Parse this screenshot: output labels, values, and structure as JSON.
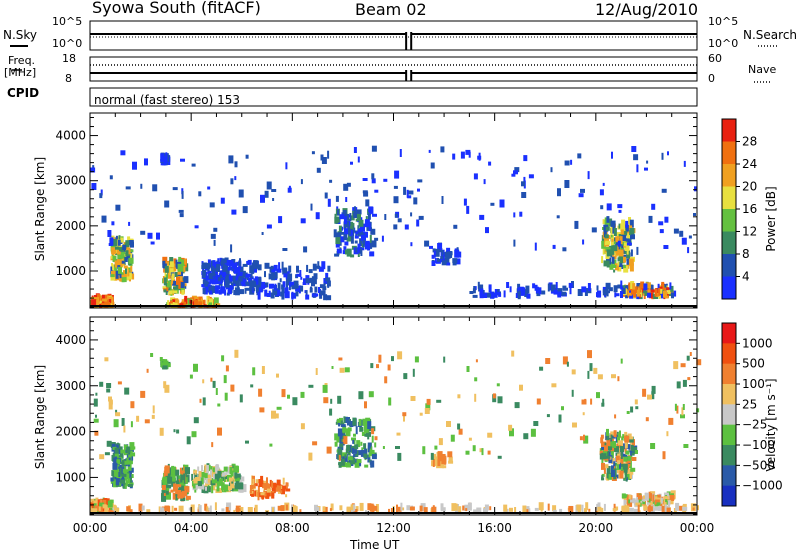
{
  "header": {
    "station": "Syowa South (fitACF)",
    "beam": "Beam 02",
    "date": "12/Aug/2010"
  },
  "panels": {
    "nsky_label": "N.Sky",
    "nsearch_label": "N.Search",
    "freq_label_line1": "Freq.",
    "freq_label_line2": "[MHz]",
    "nave_label": "Nave",
    "cpid_label": "CPID",
    "cpid_text": "normal (fast stereo) 153",
    "noise_left_ticks": [
      "10^5",
      "10^0"
    ],
    "noise_right_ticks": [
      "10^5",
      "10^0"
    ],
    "freq_left_ticks": [
      "18",
      "8"
    ],
    "freq_right_ticks": [
      "60",
      "0"
    ]
  },
  "chart_data": [
    {
      "type": "heatmap",
      "name": "power",
      "ylabel": "Slant Range [km]",
      "xlabel": "Time UT",
      "x_range_hours": [
        0,
        24
      ],
      "ylim": [
        180,
        4500
      ],
      "y_ticks": [
        1000,
        2000,
        3000,
        4000
      ],
      "colorbar_label": "Power [dB]",
      "colorbar_ticks": [
        "4",
        "8",
        "12",
        "16",
        "20",
        "24",
        "28"
      ],
      "colors": [
        "#1a30ff",
        "#2050b0",
        "#3a8a60",
        "#64c040",
        "#e8e040",
        "#f0a020",
        "#f07010",
        "#e82010"
      ],
      "blobs": [
        {
          "t": 0.4,
          "r": 250,
          "dt": 0.9,
          "dr": 160,
          "n": 120,
          "c": [
            4,
            5,
            6,
            7
          ]
        },
        {
          "t": 1.2,
          "r": 1200,
          "dt": 0.8,
          "dr": 900,
          "n": 140,
          "c": [
            1,
            2,
            3,
            4,
            5
          ]
        },
        {
          "t": 3.3,
          "r": 800,
          "dt": 0.9,
          "dr": 700,
          "n": 110,
          "c": [
            1,
            2,
            3,
            4,
            5,
            6
          ]
        },
        {
          "t": 4.0,
          "r": 230,
          "dt": 2.0,
          "dr": 100,
          "n": 90,
          "c": [
            3,
            4,
            5,
            6,
            7
          ]
        },
        {
          "t": 5.5,
          "r": 800,
          "dt": 2.2,
          "dr": 700,
          "n": 230,
          "c": [
            0,
            1
          ]
        },
        {
          "t": 8.0,
          "r": 700,
          "dt": 2.8,
          "dr": 700,
          "n": 110,
          "c": [
            0,
            1
          ]
        },
        {
          "t": 10.4,
          "r": 1800,
          "dt": 1.5,
          "dr": 1000,
          "n": 130,
          "c": [
            0,
            1,
            2
          ]
        },
        {
          "t": 2.9,
          "r": 3400,
          "dt": 0.25,
          "dr": 120,
          "n": 40,
          "c": [
            0,
            1
          ]
        },
        {
          "t": 14.0,
          "r": 1300,
          "dt": 1.0,
          "dr": 400,
          "n": 40,
          "c": [
            0,
            1
          ]
        },
        {
          "t": 20.8,
          "r": 1500,
          "dt": 1.2,
          "dr": 1100,
          "n": 170,
          "c": [
            1,
            2,
            3,
            4,
            5
          ]
        },
        {
          "t": 22.0,
          "r": 500,
          "dt": 2.0,
          "dr": 250,
          "n": 130,
          "c": [
            0,
            1,
            2,
            4,
            5,
            6,
            7
          ]
        },
        {
          "t": 18.0,
          "r": 500,
          "dt": 6.0,
          "dr": 250,
          "n": 90,
          "c": [
            0,
            1
          ]
        },
        {
          "t": 12.0,
          "r": 2500,
          "dt": 24.0,
          "dr": 2300,
          "n": 200,
          "c": [
            0,
            1
          ]
        }
      ]
    },
    {
      "type": "heatmap",
      "name": "velocity",
      "ylabel": "Slant Range [km]",
      "xlabel": "Time UT",
      "x_range_hours": [
        0,
        24
      ],
      "ylim": [
        180,
        4500
      ],
      "y_ticks": [
        1000,
        2000,
        3000,
        4000
      ],
      "x_ticks": [
        "00:00",
        "04:00",
        "08:00",
        "12:00",
        "16:00",
        "20:00",
        "00:00"
      ],
      "colorbar_label": "Velocity [m s⁻¹]",
      "colorbar_ticks": [
        "1000",
        "500",
        "100",
        "25",
        "−25",
        "−100",
        "−500",
        "−1000"
      ],
      "colors": [
        "#1830c0",
        "#2a5aa8",
        "#3a8a60",
        "#5cc040",
        "#c8c8c8",
        "#f0c060",
        "#f08030",
        "#f05010",
        "#e81818"
      ],
      "blobs": [
        {
          "t": 0.4,
          "r": 300,
          "dt": 0.9,
          "dr": 200,
          "n": 130,
          "c": [
            3,
            5,
            6,
            7
          ]
        },
        {
          "t": 1.2,
          "r": 1200,
          "dt": 0.8,
          "dr": 900,
          "n": 140,
          "c": [
            1,
            2,
            3
          ]
        },
        {
          "t": 3.3,
          "r": 800,
          "dt": 1.0,
          "dr": 700,
          "n": 120,
          "c": [
            2,
            3,
            6
          ]
        },
        {
          "t": 5.0,
          "r": 900,
          "dt": 2.0,
          "dr": 500,
          "n": 160,
          "c": [
            2,
            3,
            4,
            5
          ]
        },
        {
          "t": 7.0,
          "r": 700,
          "dt": 1.5,
          "dr": 400,
          "n": 70,
          "c": [
            5,
            6,
            7
          ]
        },
        {
          "t": 10.4,
          "r": 1700,
          "dt": 1.5,
          "dr": 1000,
          "n": 130,
          "c": [
            1,
            2,
            3
          ]
        },
        {
          "t": 2.9,
          "r": 3400,
          "dt": 0.25,
          "dr": 100,
          "n": 25,
          "c": [
            2,
            3
          ]
        },
        {
          "t": 13.8,
          "r": 1300,
          "dt": 0.8,
          "dr": 200,
          "n": 30,
          "c": [
            5,
            6
          ]
        },
        {
          "t": 20.8,
          "r": 1400,
          "dt": 1.3,
          "dr": 1000,
          "n": 170,
          "c": [
            1,
            2,
            3,
            5,
            6
          ]
        },
        {
          "t": 22.0,
          "r": 450,
          "dt": 2.0,
          "dr": 200,
          "n": 120,
          "c": [
            3,
            4,
            5,
            6
          ]
        },
        {
          "t": 12.0,
          "r": 250,
          "dt": 24.0,
          "dr": 70,
          "n": 200,
          "c": [
            4,
            5,
            6
          ]
        },
        {
          "t": 12.0,
          "r": 2500,
          "dt": 24.0,
          "dr": 2300,
          "n": 220,
          "c": [
            2,
            3,
            5,
            6
          ]
        }
      ]
    }
  ]
}
